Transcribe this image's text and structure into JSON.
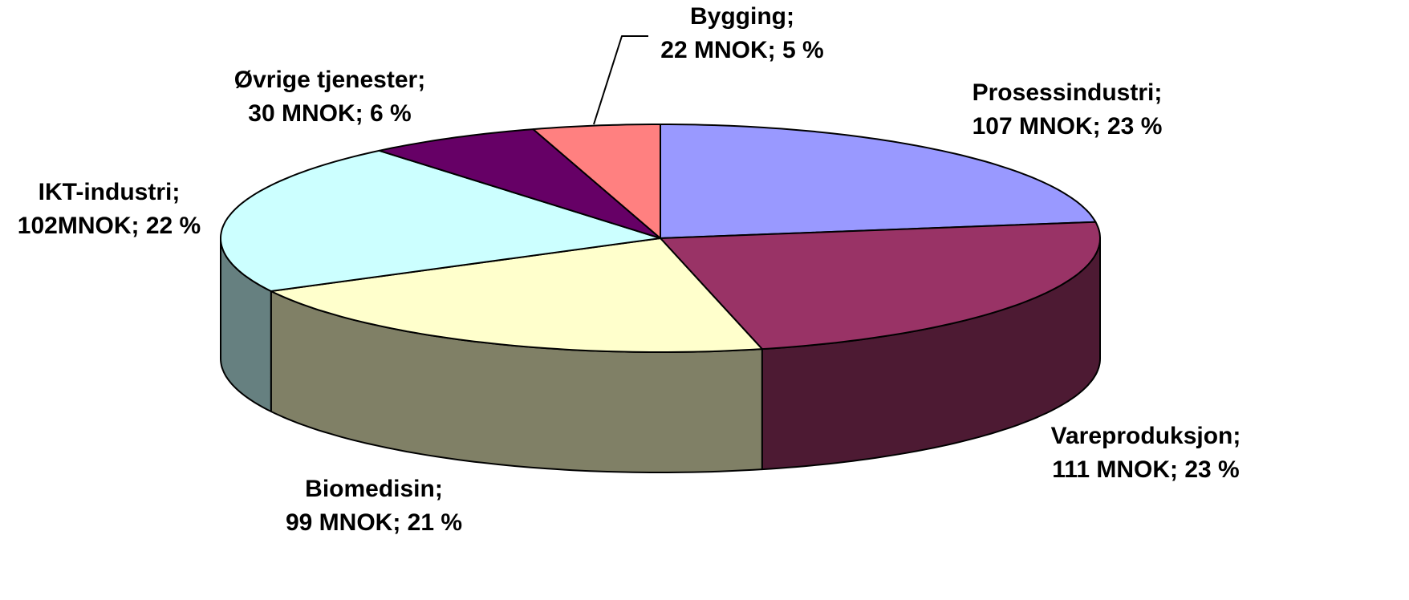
{
  "chart_data": {
    "type": "pie",
    "categories": [
      "Prosessindustri;",
      "Vareproduksjon;",
      "Biomedisin;",
      "IKT-industri;",
      "Øvrige tjenester;",
      "Bygging;"
    ],
    "values": [
      107,
      111,
      99,
      102,
      30,
      22
    ],
    "value_labels": [
      "107 MNOK; 23 %",
      "111 MNOK; 23 %",
      "99 MNOK; 21 %",
      "102MNOK; 22 %",
      "30 MNOK; 6 %",
      "22 MNOK; 5 %"
    ],
    "colors": [
      "#9999ff",
      "#993366",
      "#ffffcc",
      "#ccffff",
      "#660066",
      "#ff8080"
    ],
    "side_colors": [
      "#4d4d80",
      "#4d1a33",
      "#808066",
      "#668080",
      "#330033",
      "#804040"
    ]
  }
}
